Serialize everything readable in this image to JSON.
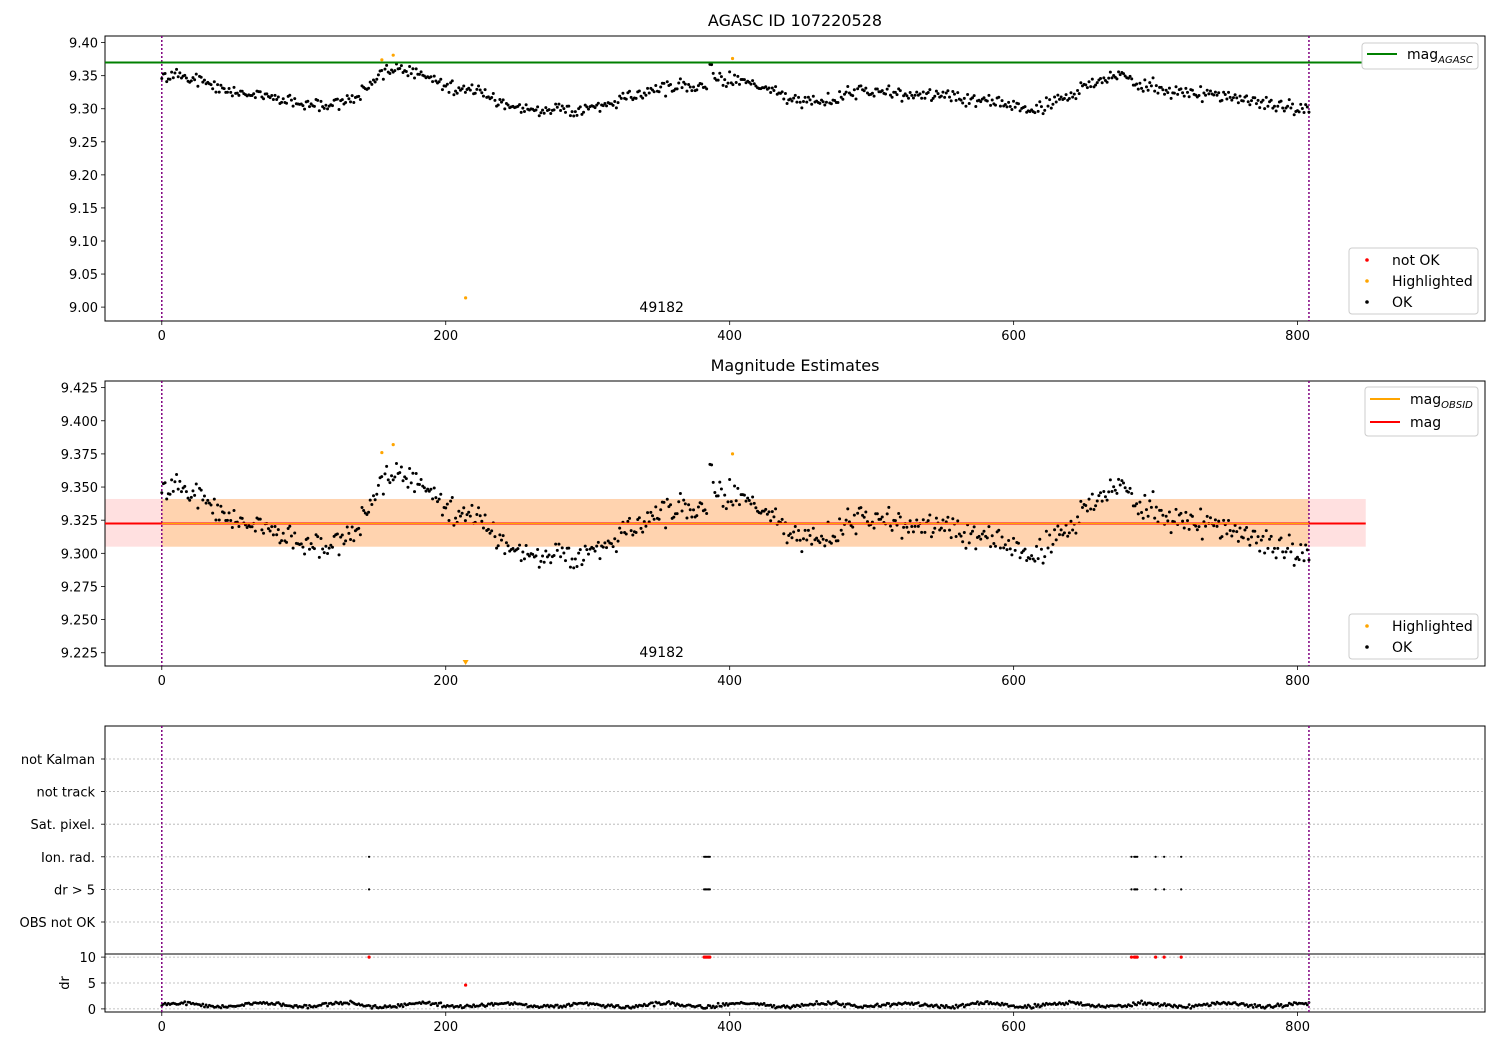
{
  "chart_data": [
    {
      "type": "scatter",
      "title": "AGASC ID 107220528",
      "xlim": [
        -40,
        932
      ],
      "ylim": [
        8.979,
        9.41
      ],
      "xticks": [
        0,
        200,
        400,
        600,
        800
      ],
      "yticks": [
        9.0,
        9.05,
        9.1,
        9.15,
        9.2,
        9.25,
        9.3,
        9.35,
        9.4
      ],
      "ytick_labels": [
        "9.00",
        "9.05",
        "9.10",
        "9.15",
        "9.20",
        "9.25",
        "9.30",
        "9.35",
        "9.40"
      ],
      "obsid_label": "49182",
      "obsid_x": 400,
      "vlines_x": [
        0,
        808
      ],
      "mag_agasc": 9.37,
      "mag_line_xrange": [
        -40,
        848
      ],
      "highlighted_points": [
        [
          155,
          9.374
        ],
        [
          163,
          9.381
        ],
        [
          214,
          9.014
        ],
        [
          402,
          9.376
        ]
      ],
      "legend_lines": [
        {
          "label": "mag",
          "sub": "AGASC",
          "color": "#008000"
        }
      ],
      "legend_markers": [
        {
          "label": "not OK",
          "color": "#ff0000"
        },
        {
          "label": "Highlighted",
          "color": "#ffa500"
        },
        {
          "label": "OK",
          "color": "#000000"
        }
      ]
    },
    {
      "type": "scatter",
      "title": "Magnitude Estimates",
      "xlim": [
        -40,
        932
      ],
      "ylim": [
        9.215,
        9.43
      ],
      "xticks": [
        0,
        200,
        400,
        600,
        800
      ],
      "yticks": [
        9.225,
        9.25,
        9.275,
        9.3,
        9.325,
        9.35,
        9.375,
        9.4,
        9.425
      ],
      "ytick_labels": [
        "9.225",
        "9.250",
        "9.275",
        "9.300",
        "9.325",
        "9.350",
        "9.375",
        "9.400",
        "9.425"
      ],
      "obsid_label": "49182",
      "obsid_x": 400,
      "vlines_x": [
        0,
        808
      ],
      "mag": 9.3225,
      "mag_band": [
        9.305,
        9.341
      ],
      "mag_obsid_band": [
        9.305,
        9.341
      ],
      "band_xrange": [
        -40,
        848
      ],
      "obsid_band_xrange": [
        0,
        808
      ],
      "highlighted_points": [
        [
          155,
          9.376
        ],
        [
          163,
          9.382
        ],
        [
          402,
          9.375
        ]
      ],
      "clipped_point_x": 214,
      "legend_lines": [
        {
          "label": "mag",
          "sub": "OBSID",
          "color": "#ffa500"
        },
        {
          "label": "mag",
          "sub": "",
          "color": "#ff0000"
        }
      ],
      "legend_markers": [
        {
          "label": "Highlighted",
          "color": "#ffa500"
        },
        {
          "label": "OK",
          "color": "#000000"
        }
      ]
    },
    {
      "type": "scatter",
      "title": "",
      "categories": [
        "not Kalman",
        "not track",
        "Sat. pixel.",
        "Ion. rad.",
        "dr > 5",
        "OBS not OK"
      ],
      "flag_times": {
        "Ion. rad.": [
          146,
          382,
          383,
          384,
          385,
          386,
          683,
          685,
          686,
          687,
          700,
          706,
          718
        ],
        "dr > 5": [
          146,
          382,
          383,
          384,
          385,
          386,
          683,
          685,
          686,
          687,
          700,
          706,
          718
        ]
      },
      "vlines_x": [
        0,
        808
      ]
    },
    {
      "type": "scatter",
      "ylabel": "dr",
      "xlim": [
        -40,
        932
      ],
      "ylim": [
        -0.6,
        10.6
      ],
      "xticks": [
        0,
        200,
        400,
        600,
        800
      ],
      "yticks": [
        0,
        5,
        10
      ],
      "high_dr_points": [
        [
          146,
          10
        ],
        [
          382,
          10
        ],
        [
          383,
          10
        ],
        [
          384,
          10
        ],
        [
          385,
          10
        ],
        [
          386,
          10
        ],
        [
          683,
          10
        ],
        [
          685,
          10
        ],
        [
          686,
          10
        ],
        [
          687,
          10
        ],
        [
          700,
          10
        ],
        [
          706,
          10
        ],
        [
          718,
          10
        ],
        [
          214,
          4.6
        ]
      ]
    }
  ]
}
